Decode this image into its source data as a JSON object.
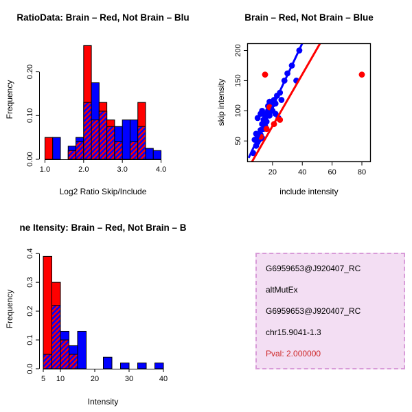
{
  "figure": {
    "background": "#FFFFFF",
    "accent_red": "#FF0000",
    "accent_blue": "#0000FF"
  },
  "chart_data": [
    {
      "id": "ratio_hist",
      "type": "bar",
      "title": "RatioData: Brain – Red, Not Brain – Blu",
      "xlabel": "Log2 Ratio Skip/Include",
      "ylabel": "Frequency",
      "xlim": [
        0.85,
        4.15
      ],
      "ylim": [
        0,
        0.27
      ],
      "grid": false,
      "box": false,
      "xticks": {
        "pos": [
          1.0,
          2.0,
          3.0,
          4.0
        ],
        "labels": [
          "1.0",
          "2.0",
          "3.0",
          "4.0"
        ]
      },
      "yticks": {
        "pos": [
          0.0,
          0.1,
          0.2
        ],
        "labels": [
          "0.00",
          "0.10",
          "0.20"
        ]
      },
      "bin_start": 1.0,
      "bin_width": 0.2,
      "series": [
        {
          "name": "Brain",
          "color": "#FF0000",
          "values": [
            0.05,
            0,
            0,
            0.02,
            0.04,
            0.26,
            0.09,
            0.13,
            0.09,
            0.04,
            0,
            0.04,
            0.13,
            0,
            0
          ]
        },
        {
          "name": "Not Brain",
          "color": "#0000FF",
          "values": [
            0,
            0.05,
            0,
            0.03,
            0.05,
            0.13,
            0.175,
            0.11,
            0.075,
            0.075,
            0.09,
            0.09,
            0.075,
            0.025,
            0.02
          ]
        }
      ]
    },
    {
      "id": "scatter",
      "type": "scatter",
      "title": "Brain – Red, Not Brain – Blue",
      "xlabel": "include intensity",
      "ylabel": "skip intensity",
      "xlim": [
        3,
        86
      ],
      "ylim": [
        15,
        212
      ],
      "grid": false,
      "box": true,
      "xticks": {
        "pos": [
          20,
          40,
          60,
          80
        ],
        "labels": [
          "20",
          "40",
          "60",
          "80"
        ]
      },
      "yticks": {
        "pos": [
          50,
          100,
          150,
          200
        ],
        "labels": [
          "50",
          "100",
          "150",
          "200"
        ]
      },
      "series": [
        {
          "name": "Not Brain",
          "color": "#0000FF",
          "points": [
            [
              7,
              30
            ],
            [
              9,
              42
            ],
            [
              8,
              52
            ],
            [
              10,
              48
            ],
            [
              11,
              52
            ],
            [
              10,
              58
            ],
            [
              12,
              60
            ],
            [
              13,
              55
            ],
            [
              9,
              62
            ],
            [
              12,
              68
            ],
            [
              14,
              70
            ],
            [
              13,
              78
            ],
            [
              15,
              75
            ],
            [
              16,
              70
            ],
            [
              14,
              85
            ],
            [
              16,
              82
            ],
            [
              10,
              88
            ],
            [
              15,
              92
            ],
            [
              12,
              95
            ],
            [
              16,
              95
            ],
            [
              17,
              100
            ],
            [
              18,
              92
            ],
            [
              13,
              100
            ],
            [
              17,
              108
            ],
            [
              19,
              105
            ],
            [
              18,
              115
            ],
            [
              20,
              110
            ],
            [
              20,
              100
            ],
            [
              21,
              118
            ],
            [
              22,
              112
            ],
            [
              22,
              95
            ],
            [
              23,
              125
            ],
            [
              24,
              88
            ],
            [
              25,
              130
            ],
            [
              26,
              118
            ],
            [
              28,
              150
            ],
            [
              30,
              162
            ],
            [
              33,
              175
            ],
            [
              36,
              150
            ],
            [
              38,
              200
            ]
          ]
        },
        {
          "name": "Brain",
          "color": "#FF0000",
          "points": [
            [
              12,
              57
            ],
            [
              15,
              160
            ],
            [
              16,
              70
            ],
            [
              18,
              106
            ],
            [
              21,
              78
            ],
            [
              25,
              85
            ],
            [
              80,
              160
            ]
          ]
        }
      ],
      "fit_lines": [
        {
          "name": "not-brain-fit",
          "color": "#0000FF",
          "from": [
            4,
            22
          ],
          "to": [
            40,
            212
          ]
        },
        {
          "name": "brain-fit",
          "color": "#FF0000",
          "from": [
            4,
            6
          ],
          "to": [
            52,
            212
          ]
        }
      ]
    },
    {
      "id": "intensity_hist",
      "type": "bar",
      "title": "ne Itensity: Brain – Red, Not Brain – B",
      "xlabel": "Intensity",
      "ylabel": "Frequency",
      "xlim": [
        3.8,
        41
      ],
      "ylim": [
        0,
        0.41
      ],
      "grid": false,
      "box": false,
      "xticks": {
        "pos": [
          5,
          10,
          20,
          30,
          40
        ],
        "labels": [
          "5",
          "10",
          "20",
          "30",
          "40"
        ]
      },
      "yticks": {
        "pos": [
          0.0,
          0.1,
          0.2,
          0.3,
          0.4
        ],
        "labels": [
          "0.0",
          "0.1",
          "0.2",
          "0.3",
          "0.4"
        ]
      },
      "bin_start": 5,
      "bin_width": 2.5,
      "series": [
        {
          "name": "Brain",
          "color": "#FF0000",
          "values": [
            0.39,
            0.3,
            0.1,
            0.05,
            0,
            0,
            0,
            0,
            0,
            0,
            0,
            0,
            0,
            0
          ]
        },
        {
          "name": "Not Brain",
          "color": "#0000FF",
          "values": [
            0.05,
            0.22,
            0.13,
            0.08,
            0.13,
            0,
            0,
            0.04,
            0,
            0.02,
            0,
            0.02,
            0,
            0.02
          ]
        }
      ]
    }
  ],
  "info_box": {
    "background": "#F3DEF3",
    "border_color": "#D89BD8",
    "lines": [
      {
        "text": "G6959653@J920407_RC",
        "color": "#000000"
      },
      {
        "text": "altMutEx",
        "color": "#000000"
      },
      {
        "text": "G6959653@J920407_RC",
        "color": "#000000"
      },
      {
        "text": "chr15.9041-1.3",
        "color": "#000000"
      },
      {
        "text": "Pval: 2.000000",
        "color": "#CD2626"
      }
    ]
  }
}
